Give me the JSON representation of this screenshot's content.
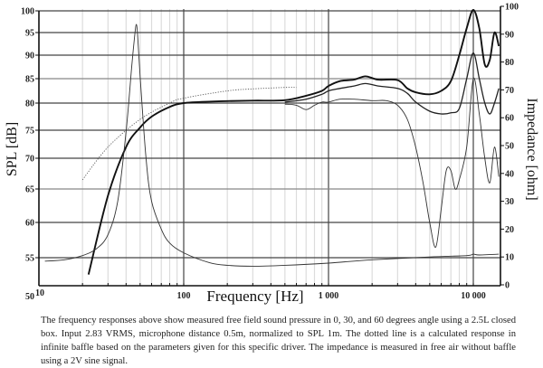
{
  "chart_data": {
    "type": "line",
    "title": "",
    "xlabel": "Frequency [Hz]",
    "ylabel": "SPL [dB]",
    "ylabel_right": "Impedance [ohm]",
    "xscale": "log",
    "xlim": [
      10,
      15000
    ],
    "ylim": [
      50,
      100
    ],
    "ylim_right": [
      0,
      100
    ],
    "grid": true,
    "x_ticks": [
      {
        "value": 10,
        "label": "10"
      },
      {
        "value": 100,
        "label": "100"
      },
      {
        "value": 1000,
        "label": "1 000"
      },
      {
        "value": 10000,
        "label": "10 000"
      }
    ],
    "y_ticks_left": [
      50,
      55,
      60,
      65,
      70,
      75,
      80,
      85,
      90,
      95,
      100
    ],
    "y_ticks_right": [
      0,
      10,
      20,
      30,
      40,
      50,
      60,
      70,
      80,
      90,
      100
    ],
    "series": [
      {
        "name": "SPL 0 degrees (measured)",
        "axis": "left",
        "style": "thick",
        "points": [
          [
            22,
            52
          ],
          [
            30,
            64
          ],
          [
            40,
            72
          ],
          [
            50,
            75.5
          ],
          [
            60,
            77.5
          ],
          [
            80,
            79.3
          ],
          [
            100,
            80
          ],
          [
            150,
            80.3
          ],
          [
            200,
            80.4
          ],
          [
            300,
            80.5
          ],
          [
            500,
            80.6
          ],
          [
            700,
            81.5
          ],
          [
            900,
            82.5
          ],
          [
            1000,
            83.5
          ],
          [
            1200,
            84.5
          ],
          [
            1500,
            84.8
          ],
          [
            1800,
            85.5
          ],
          [
            2200,
            84.8
          ],
          [
            3000,
            84.7
          ],
          [
            3500,
            83
          ],
          [
            4000,
            82.2
          ],
          [
            5000,
            81.8
          ],
          [
            6000,
            82.5
          ],
          [
            7000,
            84.5
          ],
          [
            8000,
            90
          ],
          [
            9000,
            96
          ],
          [
            10000,
            100.2
          ],
          [
            11000,
            96
          ],
          [
            12000,
            88
          ],
          [
            13000,
            89
          ],
          [
            14000,
            95
          ],
          [
            15000,
            92
          ]
        ]
      },
      {
        "name": "SPL 30 degrees (measured)",
        "axis": "left",
        "style": "medium",
        "points": [
          [
            500,
            80.2
          ],
          [
            700,
            80.8
          ],
          [
            900,
            81.8
          ],
          [
            1000,
            82.5
          ],
          [
            1200,
            83
          ],
          [
            1500,
            83.5
          ],
          [
            1800,
            84
          ],
          [
            2200,
            83.5
          ],
          [
            3000,
            83
          ],
          [
            3500,
            82
          ],
          [
            4000,
            80.2
          ],
          [
            5000,
            78.5
          ],
          [
            6000,
            78
          ],
          [
            7000,
            78.2
          ],
          [
            8000,
            79
          ],
          [
            9000,
            85
          ],
          [
            10000,
            90.5
          ],
          [
            11000,
            85
          ],
          [
            12000,
            80
          ],
          [
            13000,
            78
          ],
          [
            14000,
            80
          ],
          [
            15000,
            83
          ]
        ]
      },
      {
        "name": "SPL 60 degrees (measured)",
        "axis": "left",
        "style": "thin",
        "points": [
          [
            500,
            79.8
          ],
          [
            600,
            79.6
          ],
          [
            700,
            78.8
          ],
          [
            800,
            79.6
          ],
          [
            900,
            80.2
          ],
          [
            1000,
            80.2
          ],
          [
            1200,
            80.8
          ],
          [
            1500,
            80.8
          ],
          [
            2000,
            80.5
          ],
          [
            2500,
            80.5
          ],
          [
            3000,
            79.6
          ],
          [
            3500,
            77
          ],
          [
            4000,
            72
          ],
          [
            4500,
            66
          ],
          [
            5000,
            60
          ],
          [
            5500,
            56.5
          ],
          [
            6000,
            62
          ],
          [
            6500,
            68
          ],
          [
            7000,
            68
          ],
          [
            7500,
            65
          ],
          [
            8000,
            66.5
          ],
          [
            9000,
            72
          ],
          [
            10000,
            85
          ],
          [
            11000,
            78
          ],
          [
            12000,
            70
          ],
          [
            13000,
            66
          ],
          [
            14000,
            72
          ],
          [
            15000,
            67
          ]
        ]
      },
      {
        "name": "Calculated infinite baffle (dotted)",
        "axis": "left",
        "style": "dotted",
        "points": [
          [
            20,
            66.5
          ],
          [
            30,
            72
          ],
          [
            50,
            77
          ],
          [
            80,
            80
          ],
          [
            100,
            81
          ],
          [
            200,
            82.5
          ],
          [
            300,
            82.9
          ],
          [
            500,
            83.2
          ],
          [
            600,
            83.2
          ]
        ]
      },
      {
        "name": "Impedance",
        "axis": "right",
        "style": "thin",
        "points": [
          [
            11,
            8.5
          ],
          [
            15,
            9
          ],
          [
            20,
            10.5
          ],
          [
            25,
            13
          ],
          [
            30,
            18
          ],
          [
            35,
            30
          ],
          [
            40,
            55
          ],
          [
            44,
            80
          ],
          [
            46,
            90
          ],
          [
            47,
            93.5
          ],
          [
            48,
            90
          ],
          [
            50,
            75
          ],
          [
            55,
            45
          ],
          [
            60,
            30
          ],
          [
            70,
            20
          ],
          [
            80,
            15
          ],
          [
            100,
            11.5
          ],
          [
            150,
            8
          ],
          [
            200,
            7
          ],
          [
            300,
            6.7
          ],
          [
            500,
            7
          ],
          [
            1000,
            7.8
          ],
          [
            2000,
            9
          ],
          [
            5000,
            10
          ],
          [
            9000,
            10.5
          ],
          [
            10000,
            11
          ],
          [
            11000,
            10.7
          ],
          [
            15000,
            11
          ]
        ]
      }
    ]
  },
  "caption": {
    "text": "The frequency responses above show measured free field sound pressure in 0, 30, and 60 degrees angle using a 2.5L closed box. Input 2.83 VRMS, microphone distance 0.5m, normalized to SPL 1m. The dotted line is a calculated response in infinite baffle based on the parameters given for this specific driver. The impedance is measured in free air without baffle using a 2V sine signal."
  }
}
